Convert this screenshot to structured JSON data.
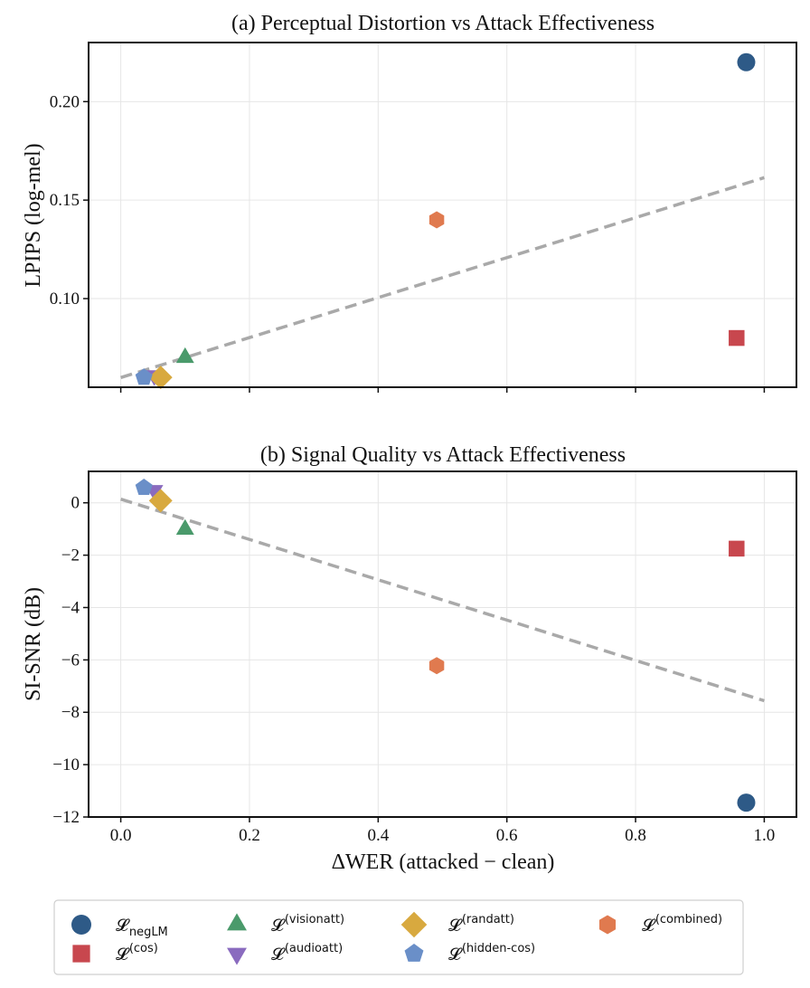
{
  "chart_data": [
    {
      "type": "scatter",
      "title": "(a) Perceptual Distortion vs Attack Effectiveness",
      "xlabel": "",
      "ylabel": "LPIPS (log-mel)",
      "xlim": [
        -0.05,
        1.05
      ],
      "ylim": [
        0.055,
        0.23
      ],
      "xticks": [
        0.0,
        0.2,
        0.4,
        0.6,
        0.8,
        1.0
      ],
      "xtick_labels_shown": false,
      "yticks": [
        0.1,
        0.15,
        0.2
      ],
      "ytick_labels": [
        "0.10",
        "0.15",
        "0.20"
      ],
      "grid": true,
      "series": [
        {
          "name": "negLM",
          "x": 0.972,
          "y": 0.22
        },
        {
          "name": "cos",
          "x": 0.957,
          "y": 0.08
        },
        {
          "name": "visionatt",
          "x": 0.1,
          "y": 0.07
        },
        {
          "name": "audioatt",
          "x": 0.052,
          "y": 0.061
        },
        {
          "name": "randatt",
          "x": 0.062,
          "y": 0.06
        },
        {
          "name": "hidden-cos",
          "x": 0.036,
          "y": 0.06
        },
        {
          "name": "combined",
          "x": 0.491,
          "y": 0.14
        }
      ],
      "trendline": {
        "x": [
          0.0,
          1.0
        ],
        "y": [
          0.0599,
          0.1614
        ]
      }
    },
    {
      "type": "scatter",
      "title": "(b) Signal Quality vs Attack Effectiveness",
      "xlabel": "ΔWER (attacked − clean)",
      "ylabel": "SI-SNR (dB)",
      "xlim": [
        -0.05,
        1.05
      ],
      "ylim": [
        -12,
        1.2
      ],
      "xticks": [
        0.0,
        0.2,
        0.4,
        0.6,
        0.8,
        1.0
      ],
      "xtick_labels": [
        "0.0",
        "0.2",
        "0.4",
        "0.6",
        "0.8",
        "1.0"
      ],
      "yticks": [
        0,
        -2,
        -4,
        -6,
        -8,
        -10,
        -12
      ],
      "ytick_labels": [
        "0",
        "−2",
        "−4",
        "−6",
        "−8",
        "−10",
        "−12"
      ],
      "grid": true,
      "series": [
        {
          "name": "negLM",
          "x": 0.972,
          "y": -11.45
        },
        {
          "name": "cos",
          "x": 0.957,
          "y": -1.75
        },
        {
          "name": "visionatt",
          "x": 0.1,
          "y": -1.02
        },
        {
          "name": "audioatt",
          "x": 0.052,
          "y": 0.48
        },
        {
          "name": "randatt",
          "x": 0.062,
          "y": 0.08
        },
        {
          "name": "hidden-cos",
          "x": 0.036,
          "y": 0.58
        },
        {
          "name": "combined",
          "x": 0.491,
          "y": -6.22
        }
      ],
      "trendline": {
        "x": [
          0.0,
          1.0
        ],
        "y": [
          0.14,
          -7.56
        ]
      }
    }
  ],
  "legend": {
    "placement": "bottom",
    "symbol": "𝓛",
    "items": [
      {
        "key": "negLM",
        "sub": "negLM",
        "sup": "",
        "marker": "circle",
        "color": "#2e5a87"
      },
      {
        "key": "cos",
        "sub": "",
        "sup": "(cos)",
        "marker": "square",
        "color": "#c8474e"
      },
      {
        "key": "visionatt",
        "sub": "",
        "sup": "(visionatt)",
        "marker": "triangle-up",
        "color": "#4a9a6b"
      },
      {
        "key": "audioatt",
        "sub": "",
        "sup": "(audioatt)",
        "marker": "triangle-down",
        "color": "#8a6bbf"
      },
      {
        "key": "randatt",
        "sub": "",
        "sup": "(randatt)",
        "marker": "diamond",
        "color": "#d8a93f"
      },
      {
        "key": "hidden-cos",
        "sub": "",
        "sup": "(hidden-cos)",
        "marker": "pentagon",
        "color": "#6a8fc8"
      },
      {
        "key": "combined",
        "sub": "",
        "sup": "(combined)",
        "marker": "hexagon",
        "color": "#e07a4f"
      }
    ]
  },
  "colors": {
    "trendline": "#a9a9a9",
    "grid": "#e6e6e6",
    "axis": "#111111"
  }
}
